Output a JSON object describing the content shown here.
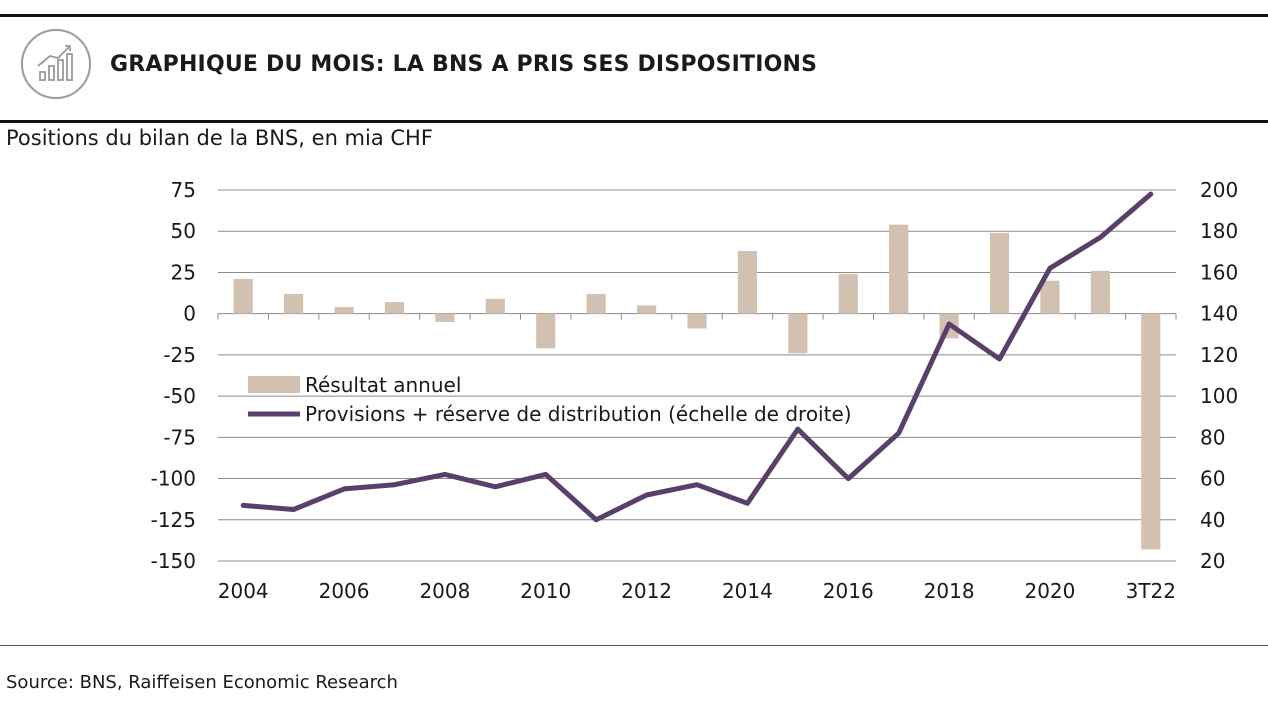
{
  "header": {
    "title": "GRAPHIQUE DU MOIS: LA BNS A PRIS SES DISPOSITIONS",
    "icon": "chart-growth-icon"
  },
  "subtitle": "Positions du bilan de la BNS, en mia CHF",
  "source": "Source: BNS, Raiffeisen Economic Research",
  "colors": {
    "bar": "#d2c1b1",
    "line": "#5a3f6b",
    "grid": "#8c8c8c",
    "text": "#1a1a1a"
  },
  "chart_data": {
    "type": "bar+line",
    "categories": [
      "2004",
      "2005",
      "2006",
      "2007",
      "2008",
      "2009",
      "2010",
      "2011",
      "2012",
      "2013",
      "2014",
      "2015",
      "2016",
      "2017",
      "2018",
      "2019",
      "2020",
      "2021",
      "3T22"
    ],
    "x_tick_labels": [
      "2004",
      "2006",
      "2008",
      "2010",
      "2012",
      "2014",
      "2016",
      "2018",
      "2020",
      "3T22"
    ],
    "series": [
      {
        "name": "Résultat annuel",
        "type": "bar",
        "axis": "left",
        "values": [
          21,
          12,
          4,
          7,
          -5,
          9,
          -21,
          12,
          5,
          -9,
          38,
          -24,
          24,
          54,
          -15,
          49,
          20,
          26,
          -143
        ]
      },
      {
        "name": "Provisions + réserve de distribution (échelle de droite)",
        "type": "line",
        "axis": "right",
        "values": [
          47,
          45,
          55,
          57,
          62,
          56,
          62,
          40,
          52,
          57,
          48,
          84,
          60,
          82,
          135,
          118,
          162,
          177,
          198
        ]
      }
    ],
    "y_left": {
      "min": -150,
      "max": 75,
      "ticks": [
        75,
        50,
        25,
        0,
        -25,
        -50,
        -75,
        -100,
        -125,
        -150
      ]
    },
    "y_right": {
      "min": 20,
      "max": 200,
      "ticks": [
        200,
        180,
        160,
        140,
        120,
        100,
        80,
        60,
        40,
        20
      ]
    },
    "grid": true,
    "legend": "center-left"
  }
}
